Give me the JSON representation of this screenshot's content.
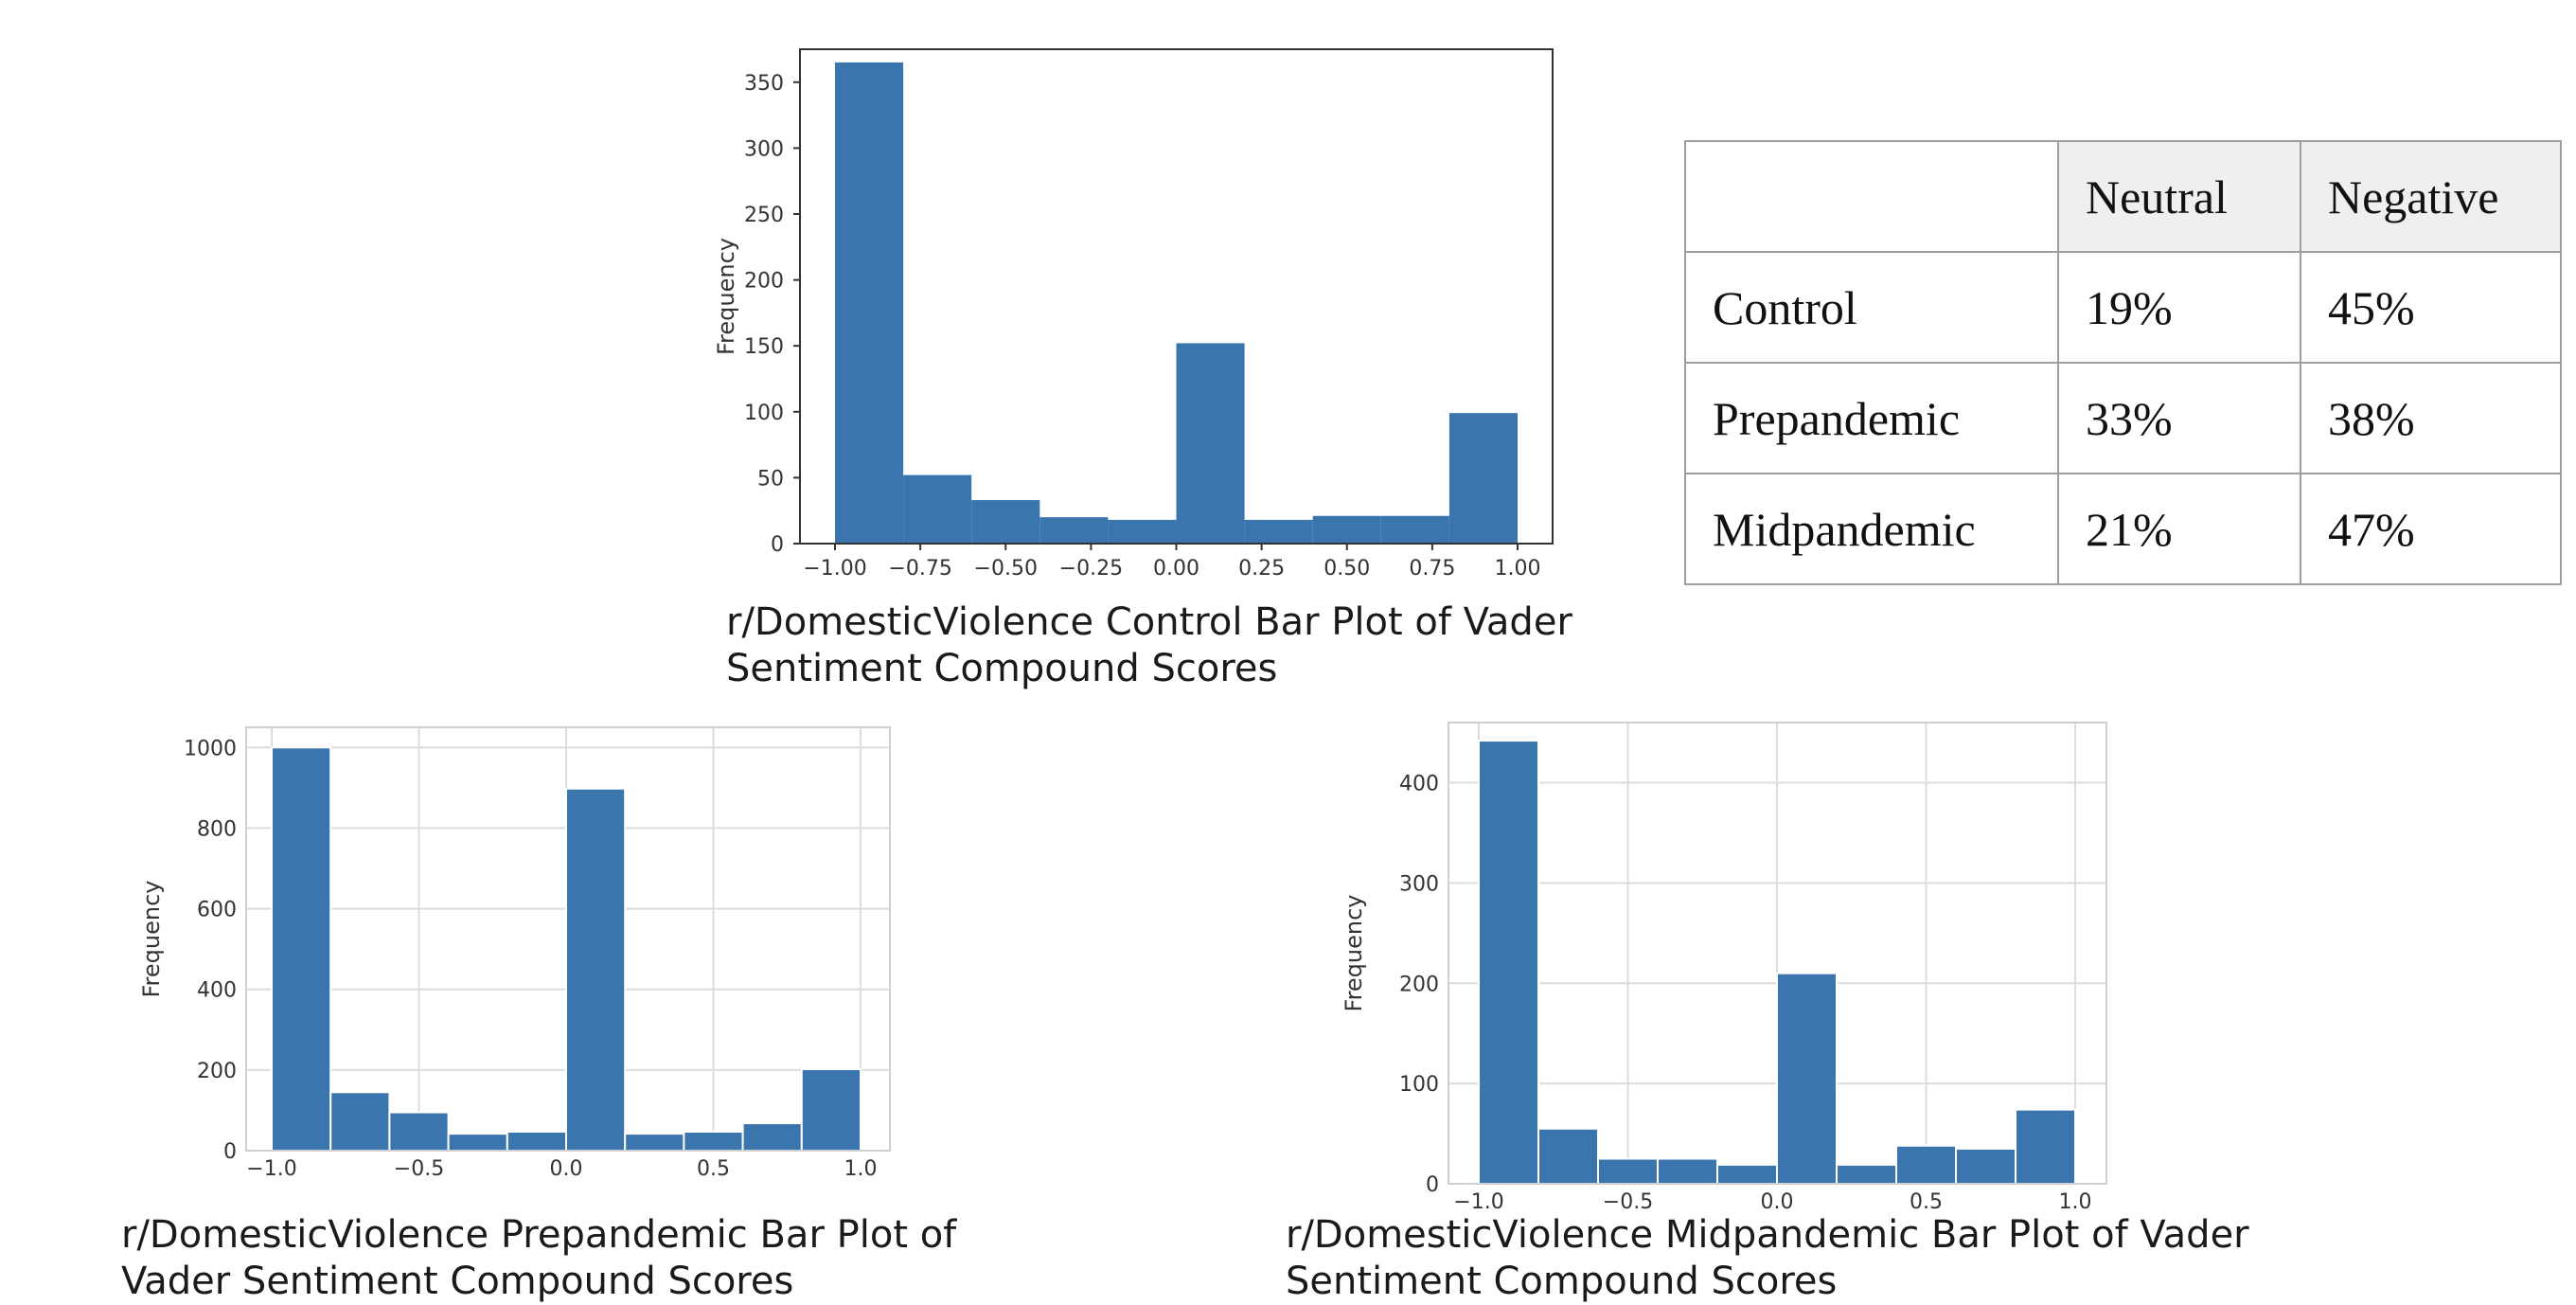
{
  "charts": [
    {
      "id": "control",
      "caption": [
        "r/DomesticViolence Control Bar Plot of Vader",
        "Sentiment Compound Scores"
      ],
      "ylabel": "Frequency",
      "style": "plain",
      "xticks": [
        "−1.00",
        "−0.75",
        "−0.50",
        "−0.25",
        "0.00",
        "0.25",
        "0.50",
        "0.75",
        "1.00"
      ],
      "yticks": [
        "0",
        "50",
        "100",
        "150",
        "200",
        "250",
        "300",
        "350"
      ]
    },
    {
      "id": "prepandemic",
      "caption": [
        "r/DomesticViolence Prepandemic Bar Plot of",
        "Vader Sentiment Compound Scores"
      ],
      "ylabel": "Frequency",
      "style": "grid",
      "xticks": [
        "−1.0",
        "−0.5",
        "0.0",
        "0.5",
        "1.0"
      ],
      "yticks": [
        "0",
        "200",
        "400",
        "600",
        "800",
        "1000"
      ]
    },
    {
      "id": "midpandemic",
      "caption": [
        "r/DomesticViolence Midpandemic Bar Plot of Vader",
        "Sentiment Compound Scores"
      ],
      "ylabel": "Frequency",
      "style": "grid",
      "xticks": [
        "−1.0",
        "−0.5",
        "0.0",
        "0.5",
        "1.0"
      ],
      "yticks": [
        "0",
        "100",
        "200",
        "300",
        "400"
      ]
    }
  ],
  "chart_data": [
    {
      "type": "bar",
      "title": "",
      "xlabel": "",
      "ylabel": "Frequency",
      "xlim": [
        -1.0,
        1.0
      ],
      "ylim": [
        0,
        375
      ],
      "bin_edges": [
        -1.0,
        -0.8,
        -0.6,
        -0.4,
        -0.2,
        0.0,
        0.2,
        0.4,
        0.6,
        0.8,
        1.0
      ],
      "values": [
        365,
        52,
        33,
        20,
        18,
        152,
        18,
        21,
        21,
        99
      ],
      "grid": false,
      "bar_color": "#3a75ad"
    },
    {
      "type": "bar",
      "title": "",
      "xlabel": "",
      "ylabel": "Frequency",
      "xlim": [
        -1.0,
        1.0
      ],
      "ylim": [
        0,
        1050
      ],
      "bin_edges": [
        -1.0,
        -0.8,
        -0.6,
        -0.4,
        -0.2,
        0.0,
        0.2,
        0.4,
        0.6,
        0.8,
        1.0
      ],
      "values": [
        1000,
        145,
        95,
        42,
        47,
        898,
        42,
        47,
        68,
        202
      ],
      "grid": true,
      "bar_color": "#3a75ad"
    },
    {
      "type": "bar",
      "title": "",
      "xlabel": "",
      "ylabel": "Frequency",
      "xlim": [
        -1.0,
        1.0
      ],
      "ylim": [
        0,
        460
      ],
      "bin_edges": [
        -1.0,
        -0.8,
        -0.6,
        -0.4,
        -0.2,
        0.0,
        0.2,
        0.4,
        0.6,
        0.8,
        1.0
      ],
      "values": [
        442,
        55,
        25,
        25,
        19,
        210,
        19,
        38,
        35,
        74
      ],
      "grid": true,
      "bar_color": "#3a75ad"
    },
    {
      "type": "table",
      "columns": [
        "",
        "Neutral",
        "Negative"
      ],
      "rows": [
        [
          "Control",
          "19%",
          "45%"
        ],
        [
          "Prepandemic",
          "33%",
          "38%"
        ],
        [
          "Midpandemic",
          "21%",
          "47%"
        ]
      ]
    }
  ]
}
